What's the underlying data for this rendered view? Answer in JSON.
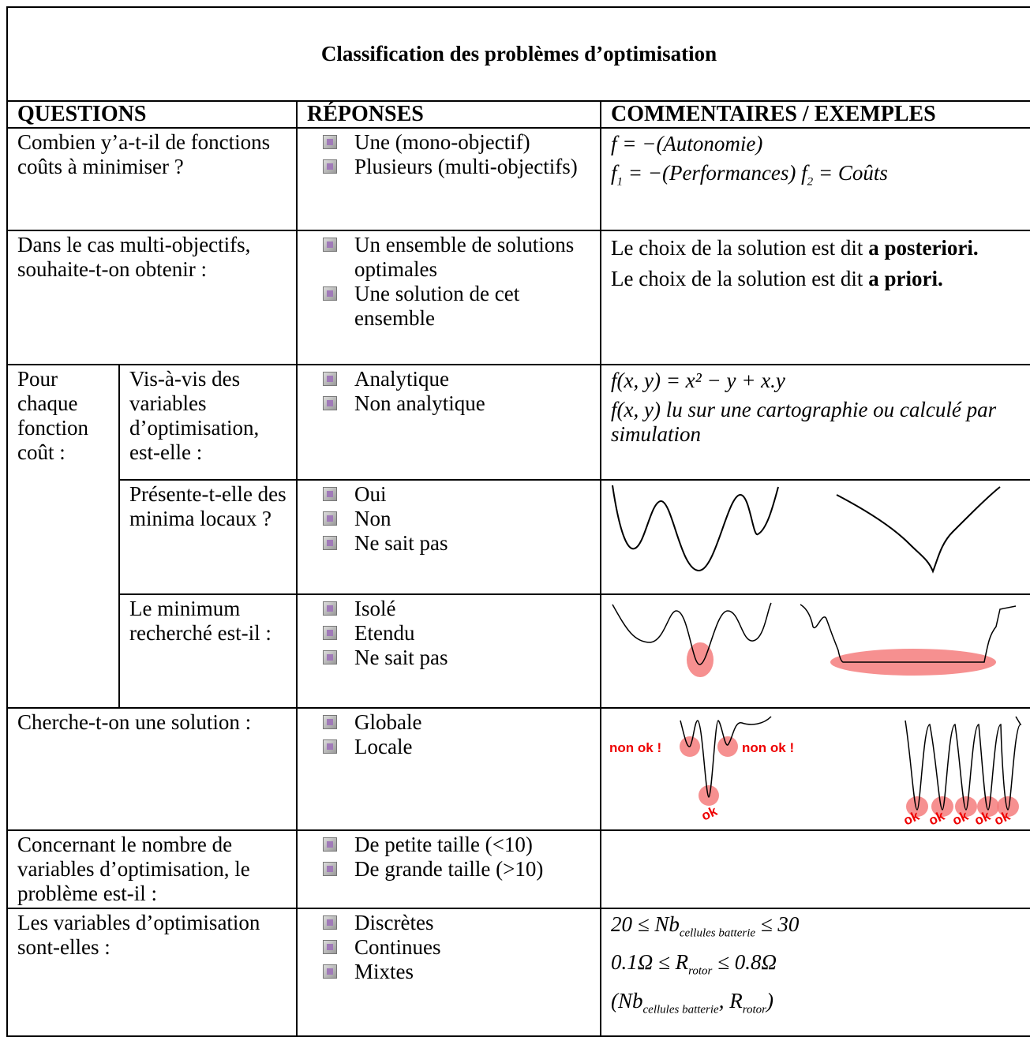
{
  "title": "Classification des problèmes d’optimisation",
  "headers": [
    "QUESTIONS",
    "RÉPONSES",
    "COMMENTAIRES / EXEMPLES"
  ],
  "rows": [
    {
      "question": "Combien y’a-t-il de fonctions coûts à minimiser ?",
      "answers": [
        "Une (mono-objectif)",
        "Plusieurs (multi-objectifs)"
      ],
      "comments": [
        [
          "f = −(Autonomie)"
        ],
        [
          "f",
          "1",
          " = −(Performances)      f",
          "2",
          " = Coûts"
        ]
      ]
    },
    {
      "question": "Dans le cas multi-objectifs, souhaite-t-on obtenir :",
      "answers": [
        "Un ensemble de solutions optimales",
        "Une solution de cet ensemble"
      ],
      "comments": [
        {
          "text": "Le choix de la solution est dit",
          "bold": "a posteriori."
        },
        {
          "text": "Le choix de la solution est dit",
          "bold": "a priori."
        }
      ]
    },
    {
      "question": "Pour chaque fonction coût :",
      "subrows": [
        {
          "question": "Vis-à-vis des variables d’optimisation, est-elle :",
          "answers": [
            "Analytique",
            "Non analytique"
          ],
          "comments": [
            [
              "f(x, y) = x² − y + x.y"
            ],
            [
              "f(x, y)  lu sur une cartographie ou calculé par simulation"
            ]
          ]
        },
        {
          "question": "Présente-t-elle des minima locaux ?",
          "answers": [
            "Oui",
            "Non",
            "Ne sait pas"
          ]
        },
        {
          "question": "Le minimum recherché est-il :",
          "answers": [
            "Isolé",
            "Etendu",
            "Ne sait pas"
          ]
        }
      ]
    },
    {
      "question": "Cherche-t-on une solution :",
      "answers": [
        "Globale",
        "Locale"
      ],
      "labels": [
        "non ok !",
        "non ok !",
        "ok",
        "ok",
        "ok",
        "ok",
        "ok",
        "ok"
      ]
    },
    {
      "question": "Concernant le nombre de variables d’optimisation, le problème est-il :",
      "answers": [
        "De petite taille (<10)",
        "De grande taille (>10)"
      ]
    },
    {
      "question": "Les variables d’optimisation sont-elles :",
      "answers": [
        "Discrètes",
        "Continues",
        "Mixtes"
      ],
      "comments": [
        [
          "20 ≤ Nb",
          "cellules batterie",
          " ≤ 30"
        ],
        [
          "0.1Ω ≤ R",
          "rotor",
          " ≤ 0.8Ω"
        ],
        [
          "(Nb",
          "cellules batterie",
          ", R",
          "rotor",
          ")"
        ]
      ]
    }
  ]
}
